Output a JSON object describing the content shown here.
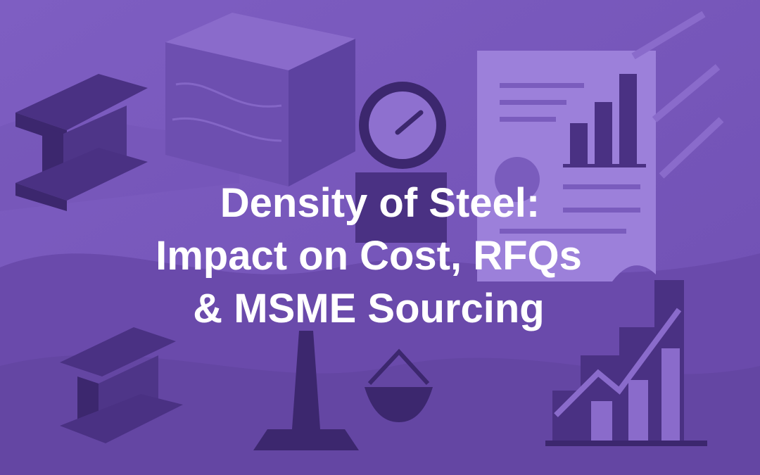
{
  "title_lines": [
    "Density of Steel:",
    "Impact on Cost, RFQs",
    "& MSME Sourcing"
  ]
}
